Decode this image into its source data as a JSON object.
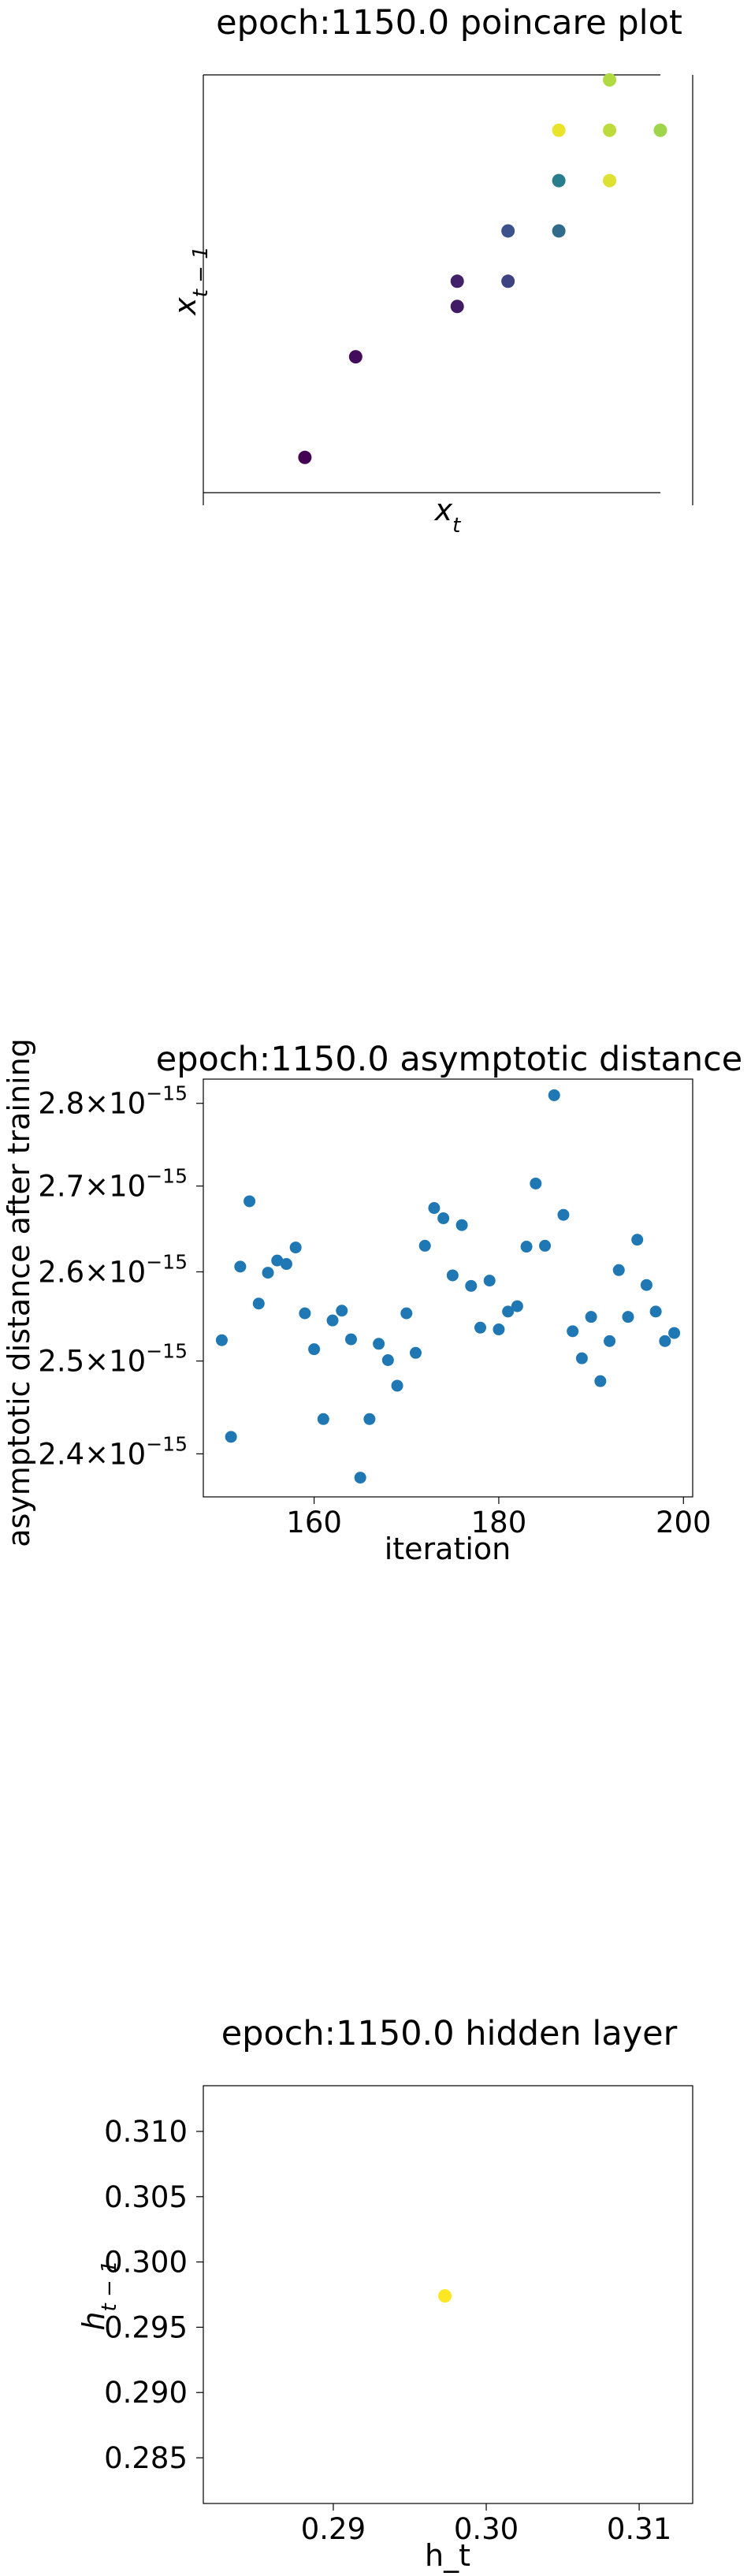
{
  "chart_data": [
    {
      "type": "scatter",
      "title": "epoch:1150.0 poincare plot",
      "xlabel": "x_t",
      "ylabel": "x_{t-1}",
      "xlim": [
        0,
        9
      ],
      "ylim": [
        0,
        8.3
      ],
      "colormap": "viridis",
      "points": [
        {
          "x": 2,
          "y": 0.7,
          "c": 0.0
        },
        {
          "x": 3,
          "y": 2.7,
          "c": 0.03
        },
        {
          "x": 5,
          "y": 3.7,
          "c": 0.08
        },
        {
          "x": 5,
          "y": 4.2,
          "c": 0.1
        },
        {
          "x": 6,
          "y": 4.2,
          "c": 0.2
        },
        {
          "x": 6,
          "y": 5.2,
          "c": 0.25
        },
        {
          "x": 7,
          "y": 5.2,
          "c": 0.35
        },
        {
          "x": 7,
          "y": 6.2,
          "c": 0.42
        },
        {
          "x": 8,
          "y": 6.2,
          "c": 0.95
        },
        {
          "x": 8,
          "y": 7.2,
          "c": 0.9
        },
        {
          "x": 7,
          "y": 7.2,
          "c": 0.97
        },
        {
          "x": 9,
          "y": 7.2,
          "c": 0.85
        },
        {
          "x": 8,
          "y": 8.2,
          "c": 0.88
        }
      ]
    },
    {
      "type": "scatter",
      "title": "epoch:1150.0 asymptotic distance",
      "xlabel": "iteration",
      "ylabel": "asymptotic distance after training",
      "xlim": [
        148,
        201
      ],
      "ylim": [
        2.355e-15,
        2.83e-15
      ],
      "yscale": "log",
      "color": "#1f77b4",
      "xticks": [
        160,
        180,
        200
      ],
      "yticks": [
        {
          "value": 2.4e-15,
          "base": "2.4",
          "exp": "−15"
        },
        {
          "value": 2.5e-15,
          "base": "2.5",
          "exp": "−15"
        },
        {
          "value": 2.6e-15,
          "base": "2.6",
          "exp": "−15"
        },
        {
          "value": 2.7e-15,
          "base": "2.7",
          "exp": "−15"
        },
        {
          "value": 2.8e-15,
          "base": "2.8",
          "exp": "−15"
        }
      ],
      "x": [
        150,
        151,
        152,
        153,
        154,
        155,
        156,
        157,
        158,
        159,
        160,
        161,
        162,
        163,
        164,
        165,
        166,
        167,
        168,
        169,
        170,
        171,
        172,
        173,
        174,
        175,
        176,
        177,
        178,
        179,
        180,
        181,
        182,
        183,
        184,
        185,
        186,
        187,
        188,
        189,
        190,
        191,
        192,
        193,
        194,
        195,
        196,
        197,
        198,
        199
      ],
      "y": [
        2.523e-15,
        2.418e-15,
        2.606e-15,
        2.682e-15,
        2.564e-15,
        2.599e-15,
        2.613e-15,
        2.609e-15,
        2.628e-15,
        2.553e-15,
        2.513e-15,
        2.437e-15,
        2.545e-15,
        2.556e-15,
        2.524e-15,
        2.375e-15,
        2.437e-15,
        2.519e-15,
        2.501e-15,
        2.473e-15,
        2.553e-15,
        2.509e-15,
        2.63e-15,
        2.674e-15,
        2.662e-15,
        2.596e-15,
        2.654e-15,
        2.584e-15,
        2.537e-15,
        2.59e-15,
        2.535e-15,
        2.555e-15,
        2.561e-15,
        2.629e-15,
        2.703e-15,
        2.63e-15,
        2.81e-15,
        2.666e-15,
        2.533e-15,
        2.503e-15,
        2.549e-15,
        2.478e-15,
        2.522e-15,
        2.602e-15,
        2.549e-15,
        2.637e-15,
        2.585e-15,
        2.555e-15,
        2.522e-15,
        2.531e-15
      ]
    },
    {
      "type": "scatter",
      "title": "epoch:1150.0 hidden layer",
      "xlabel": "h_t",
      "ylabel": "h_{t-1}",
      "xlim": [
        0.2815,
        0.3135
      ],
      "ylim": [
        0.2815,
        0.3135
      ],
      "xticks": [
        0.29,
        0.3,
        0.31
      ],
      "yticks": [
        0.285,
        0.29,
        0.295,
        0.3,
        0.305,
        0.31
      ],
      "xtick_labels": [
        "0.29",
        "0.30",
        "0.31"
      ],
      "ytick_labels": [
        "0.285",
        "0.290",
        "0.295",
        "0.300",
        "0.305",
        "0.310"
      ],
      "points": [
        {
          "x": 0.2973,
          "y": 0.2974
        }
      ],
      "color": "#fde725"
    }
  ]
}
